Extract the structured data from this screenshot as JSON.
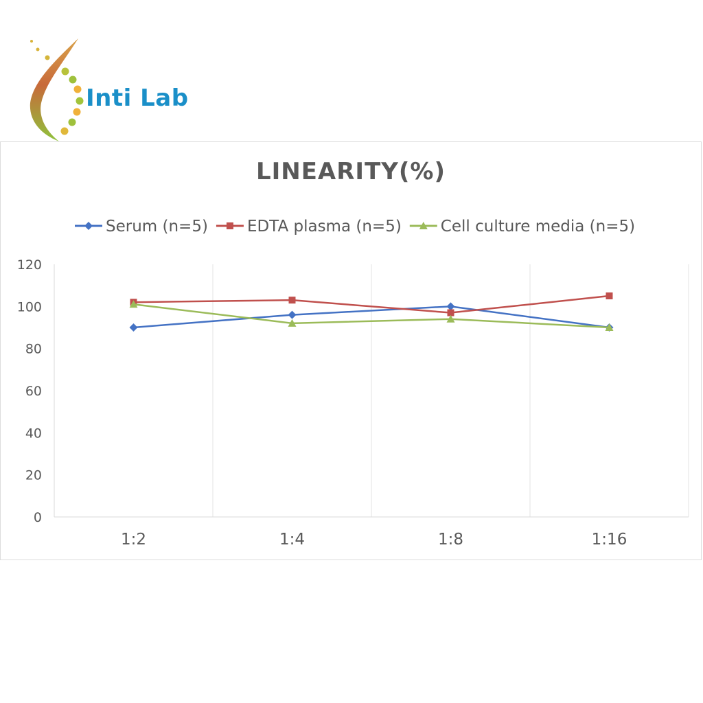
{
  "logo": {
    "text": "Inti Lab",
    "brand_color": "#1a8fc8"
  },
  "chart_data": {
    "type": "line",
    "title": "LINEARITY(%)",
    "categories": [
      "1:2",
      "1:4",
      "1:8",
      "1:16"
    ],
    "ylim": [
      0,
      120
    ],
    "yticks": [
      0,
      20,
      40,
      60,
      80,
      100,
      120
    ],
    "grid": "vertical",
    "legend_position": "top",
    "series": [
      {
        "name": "Serum (n=5)",
        "color": "#4472c4",
        "marker": "diamond",
        "values": [
          90,
          96,
          100,
          90
        ]
      },
      {
        "name": "EDTA plasma (n=5)",
        "color": "#c0504d",
        "marker": "square",
        "values": [
          102,
          103,
          97,
          105
        ]
      },
      {
        "name": "Cell culture media (n=5)",
        "color": "#9bbb59",
        "marker": "triangle",
        "values": [
          101,
          92,
          94,
          90
        ]
      }
    ]
  }
}
